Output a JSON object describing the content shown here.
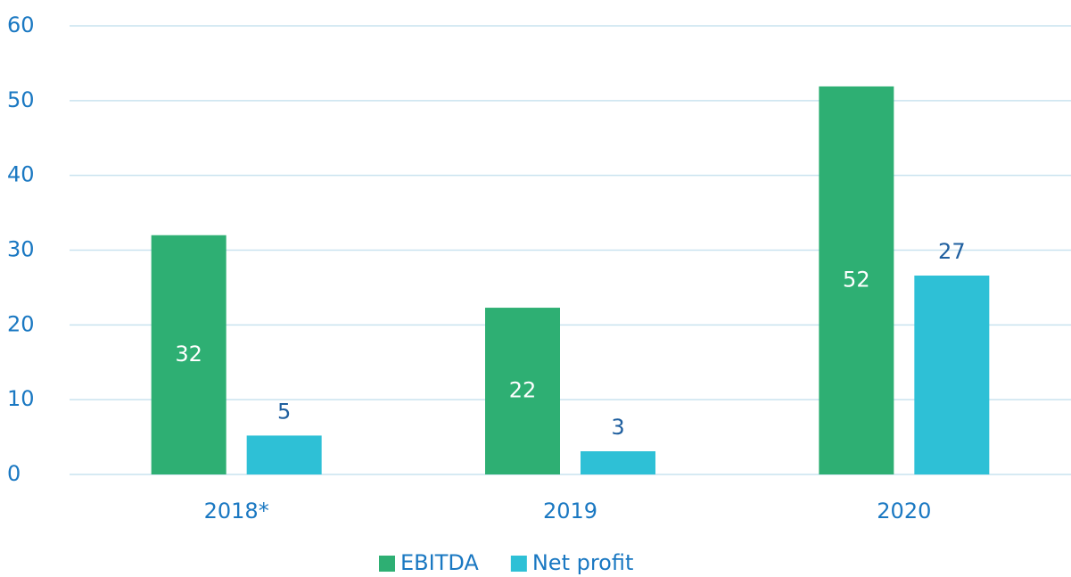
{
  "chart_data": {
    "type": "bar",
    "categories": [
      "2018*",
      "2019",
      "2020"
    ],
    "series": [
      {
        "name": "EBITDA",
        "color": "#2eaf73",
        "values": [
          32,
          22.3,
          51.9
        ],
        "value_labels": [
          "32",
          "22",
          "52"
        ]
      },
      {
        "name": "Net profit",
        "color": "#2ec0d6",
        "values": [
          5.2,
          3.1,
          26.6
        ],
        "value_labels": [
          "5",
          "3",
          "27"
        ]
      }
    ],
    "ylim": [
      0,
      60
    ],
    "yticks": [
      0,
      10,
      20,
      30,
      40,
      50,
      60
    ],
    "grid": true,
    "legend": "bottom"
  }
}
